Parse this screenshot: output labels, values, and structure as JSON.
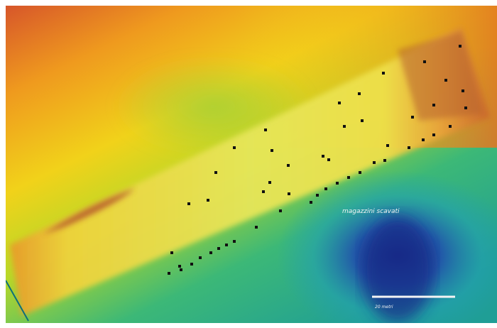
{
  "map": {
    "area_label": "magazzini scavati",
    "scale_label": "20 metri"
  }
}
